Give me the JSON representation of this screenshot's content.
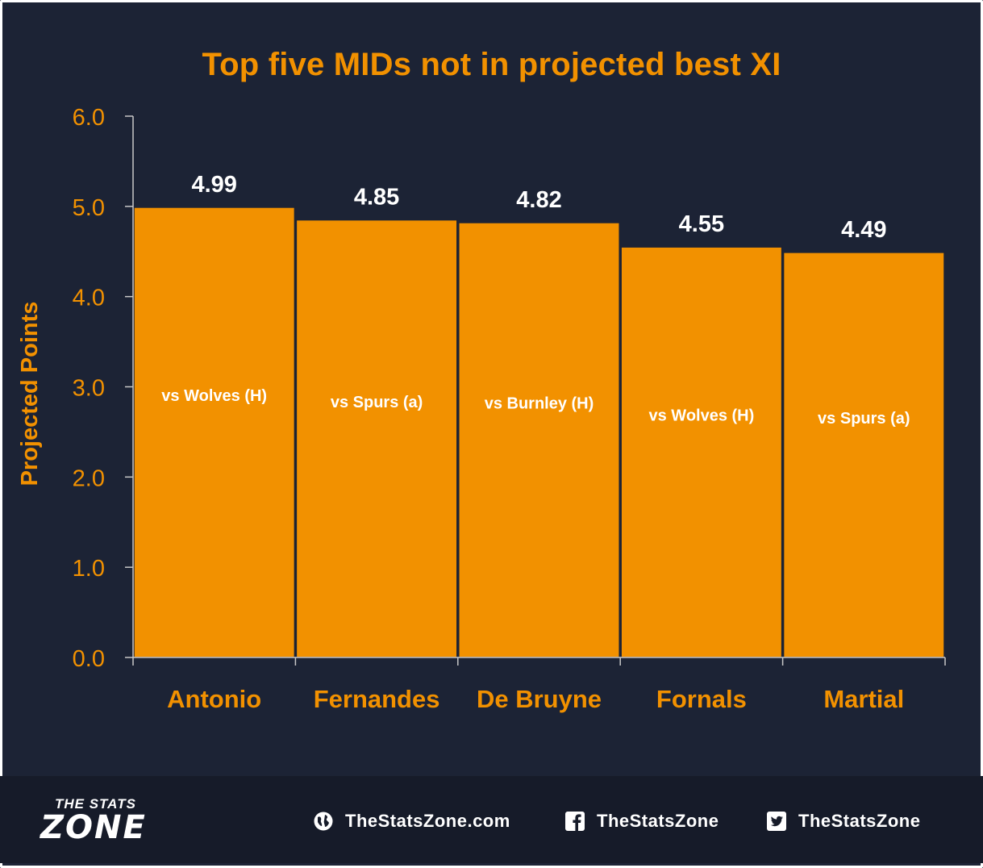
{
  "chart_data": {
    "type": "bar",
    "title": "Top five MIDs not in projected best XI",
    "ylabel": "Projected Points",
    "xlabel": "",
    "categories": [
      "Antonio",
      "Fernandes",
      "De Bruyne",
      "Fornals",
      "Martial"
    ],
    "values": [
      4.99,
      4.85,
      4.82,
      4.55,
      4.49
    ],
    "value_labels": [
      "4.99",
      "4.85",
      "4.82",
      "4.55",
      "4.49"
    ],
    "bar_annotations": [
      "vs Wolves (H)",
      "vs Spurs (a)",
      "vs Burnley (H)",
      "vs Wolves (H)",
      "vs Spurs (a)"
    ],
    "ylim": [
      0,
      6
    ],
    "yticks": [
      "0.0",
      "1.0",
      "2.0",
      "3.0",
      "4.0",
      "5.0",
      "6.0"
    ],
    "grid": false,
    "colors": {
      "bar": "#f29100",
      "axis_text": "#f29100",
      "value_text": "#ffffff",
      "background": "#1c2335"
    }
  },
  "footer": {
    "logo_top": "THE STATS",
    "logo_bottom": "ZONE",
    "website": "TheStatsZone.com",
    "facebook": "TheStatsZone",
    "twitter": "TheStatsZone",
    "icons": [
      "globe-icon",
      "facebook-icon",
      "twitter-icon"
    ]
  }
}
